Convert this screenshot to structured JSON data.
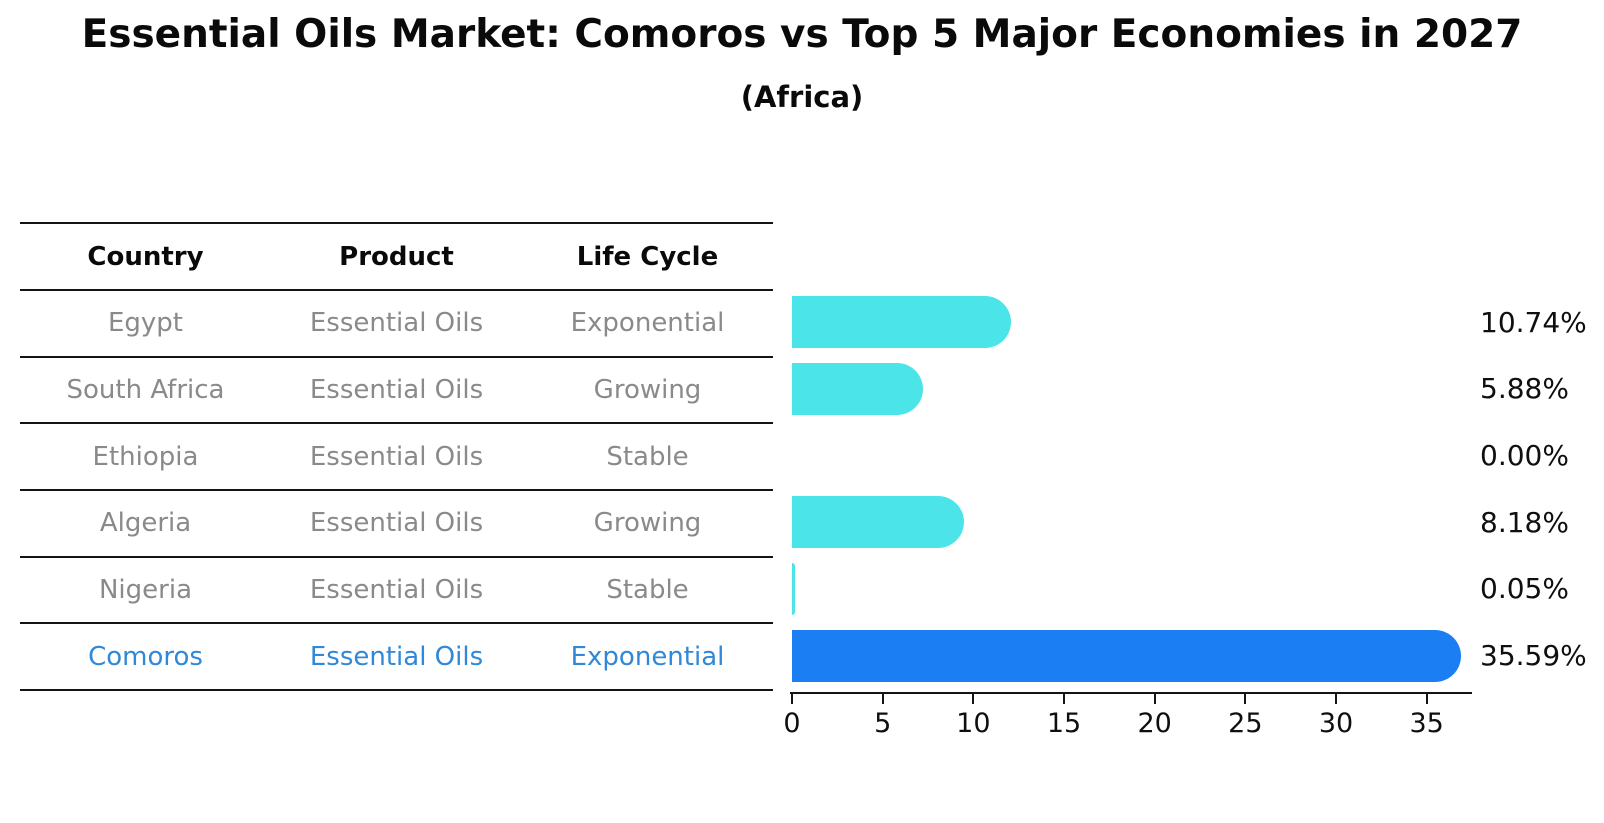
{
  "page": {
    "background": "#ffffff"
  },
  "chart_data": {
    "type": "bar",
    "orientation": "horizontal",
    "title": "Essential Oils Market: Comoros vs Top 5 Major Economies in 2027",
    "subtitle": "(Africa)",
    "categories": [
      "Egypt",
      "South Africa",
      "Ethiopia",
      "Algeria",
      "Nigeria",
      "Comoros"
    ],
    "values": [
      10.74,
      5.88,
      0.0,
      8.18,
      0.05,
      35.59
    ],
    "value_labels": [
      "10.74%",
      "5.88%",
      "0.00%",
      "8.18%",
      "0.05%",
      "35.59%"
    ],
    "x_ticks": [
      0,
      5,
      10,
      15,
      20,
      25,
      30,
      35
    ],
    "xlim": [
      0,
      37.5
    ],
    "grid": false,
    "legend": null,
    "highlight_index": 5,
    "bar_color_default": "#4be4e8",
    "bar_color_highlight": "#1b7ef2"
  },
  "table": {
    "headers": [
      "Country",
      "Product",
      "Life Cycle"
    ],
    "rows": [
      [
        "Egypt",
        "Essential Oils",
        "Exponential"
      ],
      [
        "South Africa",
        "Essential Oils",
        "Growing"
      ],
      [
        "Ethiopia",
        "Essential Oils",
        "Stable"
      ],
      [
        "Algeria",
        "Essential Oils",
        "Growing"
      ],
      [
        "Nigeria",
        "Essential Oils",
        "Stable"
      ],
      [
        "Comoros",
        "Essential Oils",
        "Exponential"
      ]
    ],
    "highlight_row": 5
  },
  "colors": {
    "table_text": "#8a8a8a",
    "header_text": "#0a0a0a",
    "highlight_text": "#3088d8",
    "axis_line": "#141414",
    "label_text": "#0f0f0f"
  }
}
